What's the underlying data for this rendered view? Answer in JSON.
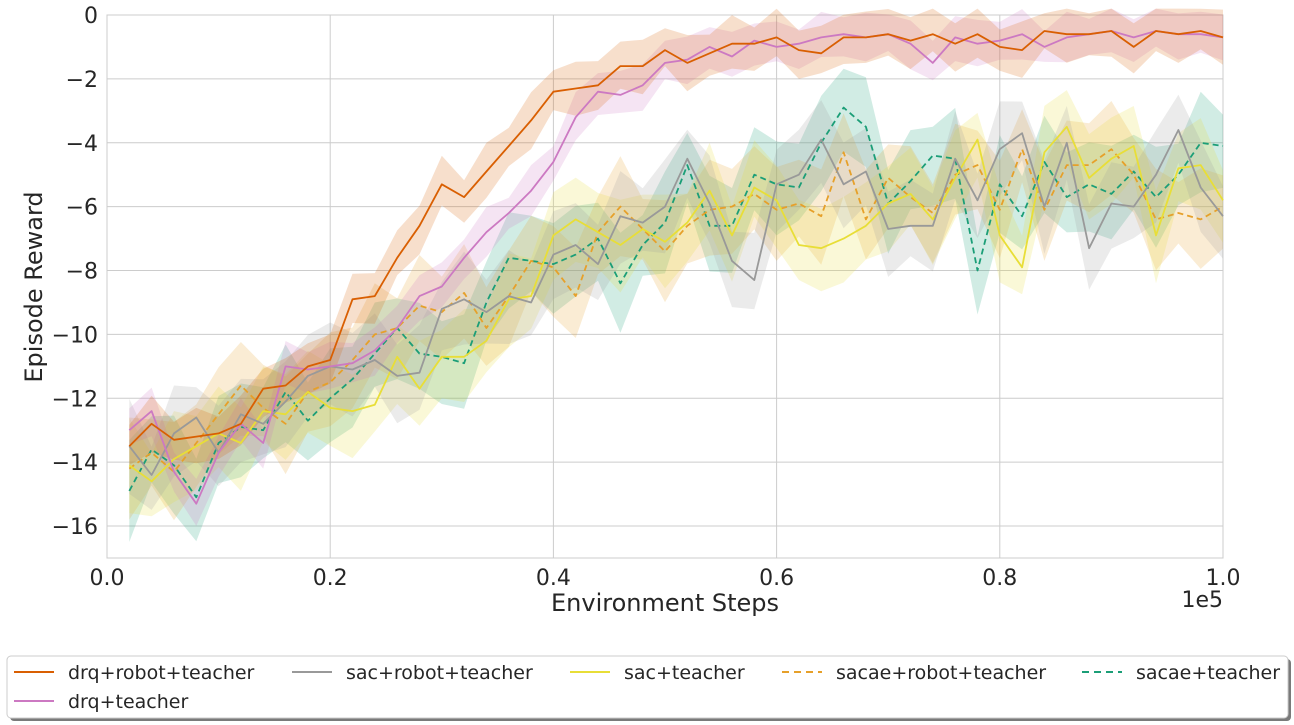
{
  "chart_data": {
    "type": "line",
    "xlabel": "Environment Steps",
    "ylabel": "Episode Reward",
    "x_offset_text": "1e5",
    "xlim": [
      0,
      1.0
    ],
    "ylim": [
      -17,
      0
    ],
    "xticks": [
      0.0,
      0.2,
      0.4,
      0.6,
      0.8,
      1.0
    ],
    "xtick_labels": [
      "0.0",
      "0.2",
      "0.4",
      "0.6",
      "0.8",
      "1.0"
    ],
    "yticks": [
      0,
      -2,
      -4,
      -6,
      -8,
      -10,
      -12,
      -14,
      -16
    ],
    "ytick_labels": [
      "0",
      "−2",
      "−4",
      "−6",
      "−8",
      "−10",
      "−12",
      "−14",
      "−16"
    ],
    "grid": true,
    "legend_position": "bottom",
    "x": [
      0.02,
      0.04,
      0.06,
      0.08,
      0.1,
      0.12,
      0.14,
      0.16,
      0.18,
      0.2,
      0.22,
      0.24,
      0.26,
      0.28,
      0.3,
      0.32,
      0.34,
      0.36,
      0.38,
      0.4,
      0.42,
      0.44,
      0.46,
      0.48,
      0.5,
      0.52,
      0.54,
      0.56,
      0.58,
      0.6,
      0.62,
      0.64,
      0.66,
      0.68,
      0.7,
      0.72,
      0.74,
      0.76,
      0.78,
      0.8,
      0.82,
      0.84,
      0.86,
      0.88,
      0.9,
      0.92,
      0.94,
      0.96,
      0.98,
      1.0
    ],
    "series": [
      {
        "name": "sacae+teacher",
        "color": "#1b9e77",
        "dashed": true,
        "band": 1.6,
        "values": [
          -14.9,
          -13.6,
          -14.1,
          -15.1,
          -13.4,
          -12.9,
          -13.0,
          -11.8,
          -12.7,
          -12.0,
          -11.4,
          -10.6,
          -9.8,
          -10.6,
          -10.7,
          -10.9,
          -9.0,
          -7.6,
          -7.7,
          -7.8,
          -7.5,
          -7.0,
          -8.4,
          -7.2,
          -6.5,
          -4.7,
          -6.6,
          -6.6,
          -5.0,
          -5.3,
          -5.4,
          -4.0,
          -2.9,
          -3.5,
          -5.9,
          -5.2,
          -4.4,
          -4.5,
          -8.0,
          -5.3,
          -6.3,
          -4.6,
          -5.7,
          -5.3,
          -5.6,
          -4.9,
          -5.7,
          -5.0,
          -4.0,
          -4.1
        ]
      },
      {
        "name": "sacae+robot+teacher",
        "color": "#e6a02a",
        "dashed": true,
        "band": 1.6,
        "values": [
          -14.2,
          -13.7,
          -14.3,
          -13.4,
          -12.5,
          -11.6,
          -12.3,
          -12.8,
          -11.8,
          -11.5,
          -10.8,
          -10.0,
          -9.8,
          -9.1,
          -9.3,
          -8.7,
          -9.8,
          -8.8,
          -7.7,
          -7.9,
          -8.8,
          -6.8,
          -6.0,
          -6.7,
          -7.4,
          -6.6,
          -6.1,
          -6.0,
          -5.6,
          -6.1,
          -5.9,
          -6.3,
          -4.3,
          -6.4,
          -5.1,
          -5.7,
          -6.2,
          -5.0,
          -4.7,
          -6.1,
          -4.2,
          -6.1,
          -4.7,
          -4.7,
          -4.2,
          -5.0,
          -6.4,
          -6.2,
          -6.4,
          -6.0
        ]
      },
      {
        "name": "sac+teacher",
        "color": "#e8de37",
        "dashed": false,
        "band": 1.5,
        "values": [
          -14.1,
          -14.6,
          -13.9,
          -13.5,
          -13.1,
          -13.4,
          -12.4,
          -12.5,
          -11.8,
          -12.3,
          -12.4,
          -12.2,
          -10.7,
          -11.7,
          -10.7,
          -10.7,
          -10.2,
          -8.9,
          -8.8,
          -6.9,
          -6.4,
          -6.8,
          -7.2,
          -6.7,
          -7.1,
          -6.5,
          -5.5,
          -6.9,
          -5.4,
          -5.8,
          -7.2,
          -7.3,
          -7.0,
          -6.6,
          -5.9,
          -5.6,
          -6.4,
          -5.1,
          -3.9,
          -6.9,
          -7.9,
          -4.3,
          -3.5,
          -5.1,
          -4.5,
          -4.1,
          -6.9,
          -4.8,
          -4.7,
          -5.8
        ]
      },
      {
        "name": "sac+robot+teacher",
        "color": "#999999",
        "dashed": false,
        "band": 1.5,
        "values": [
          -13.5,
          -14.4,
          -13.1,
          -12.6,
          -13.7,
          -12.5,
          -12.8,
          -12.1,
          -11.3,
          -11.0,
          -11.1,
          -10.8,
          -11.3,
          -11.2,
          -9.2,
          -8.9,
          -9.3,
          -8.8,
          -9.0,
          -7.5,
          -7.2,
          -7.8,
          -6.3,
          -6.5,
          -6.0,
          -4.5,
          -5.9,
          -7.7,
          -8.3,
          -5.3,
          -5.0,
          -3.9,
          -5.3,
          -4.9,
          -6.7,
          -6.6,
          -6.6,
          -4.5,
          -5.8,
          -4.2,
          -3.7,
          -6.0,
          -4.0,
          -7.3,
          -5.9,
          -6.0,
          -5.0,
          -3.6,
          -5.4,
          -6.3
        ]
      },
      {
        "name": "drq+teacher",
        "color": "#cc79c2",
        "dashed": false,
        "band": 0.8,
        "values": [
          -13.0,
          -12.4,
          -14.3,
          -15.3,
          -13.7,
          -12.8,
          -13.4,
          -11.0,
          -11.1,
          -11.0,
          -10.9,
          -10.5,
          -9.8,
          -8.8,
          -8.5,
          -7.6,
          -6.8,
          -6.2,
          -5.5,
          -4.6,
          -3.2,
          -2.4,
          -2.5,
          -2.2,
          -1.5,
          -1.4,
          -1.0,
          -1.3,
          -0.8,
          -1.0,
          -0.9,
          -0.7,
          -0.6,
          -0.7,
          -0.6,
          -0.9,
          -1.5,
          -0.7,
          -0.9,
          -0.8,
          -0.6,
          -1.0,
          -0.7,
          -0.6,
          -0.5,
          -0.7,
          -0.5,
          -0.6,
          -0.6,
          -0.7
        ]
      },
      {
        "name": "drq+robot+teacher",
        "color": "#d95f02",
        "dashed": false,
        "band": 0.9,
        "values": [
          -13.5,
          -12.8,
          -13.3,
          -13.2,
          -13.1,
          -12.8,
          -11.7,
          -11.6,
          -11.0,
          -10.8,
          -8.9,
          -8.8,
          -7.6,
          -6.6,
          -5.3,
          -5.7,
          -4.9,
          -4.1,
          -3.3,
          -2.4,
          -2.3,
          -2.2,
          -1.6,
          -1.6,
          -1.1,
          -1.5,
          -1.2,
          -0.9,
          -0.9,
          -0.7,
          -1.1,
          -1.2,
          -0.7,
          -0.7,
          -0.6,
          -0.8,
          -0.6,
          -0.9,
          -0.6,
          -1.0,
          -1.1,
          -0.5,
          -0.6,
          -0.6,
          -0.5,
          -1.0,
          -0.5,
          -0.6,
          -0.5,
          -0.7
        ]
      }
    ],
    "legend": [
      {
        "name": "drq+robot+teacher",
        "color": "#d95f02",
        "dashed": false
      },
      {
        "name": "sac+robot+teacher",
        "color": "#999999",
        "dashed": false
      },
      {
        "name": "sac+teacher",
        "color": "#e8de37",
        "dashed": false
      },
      {
        "name": "sacae+robot+teacher",
        "color": "#e6a02a",
        "dashed": true
      },
      {
        "name": "sacae+teacher",
        "color": "#1b9e77",
        "dashed": true
      },
      {
        "name": "drq+teacher",
        "color": "#cc79c2",
        "dashed": false
      }
    ]
  }
}
